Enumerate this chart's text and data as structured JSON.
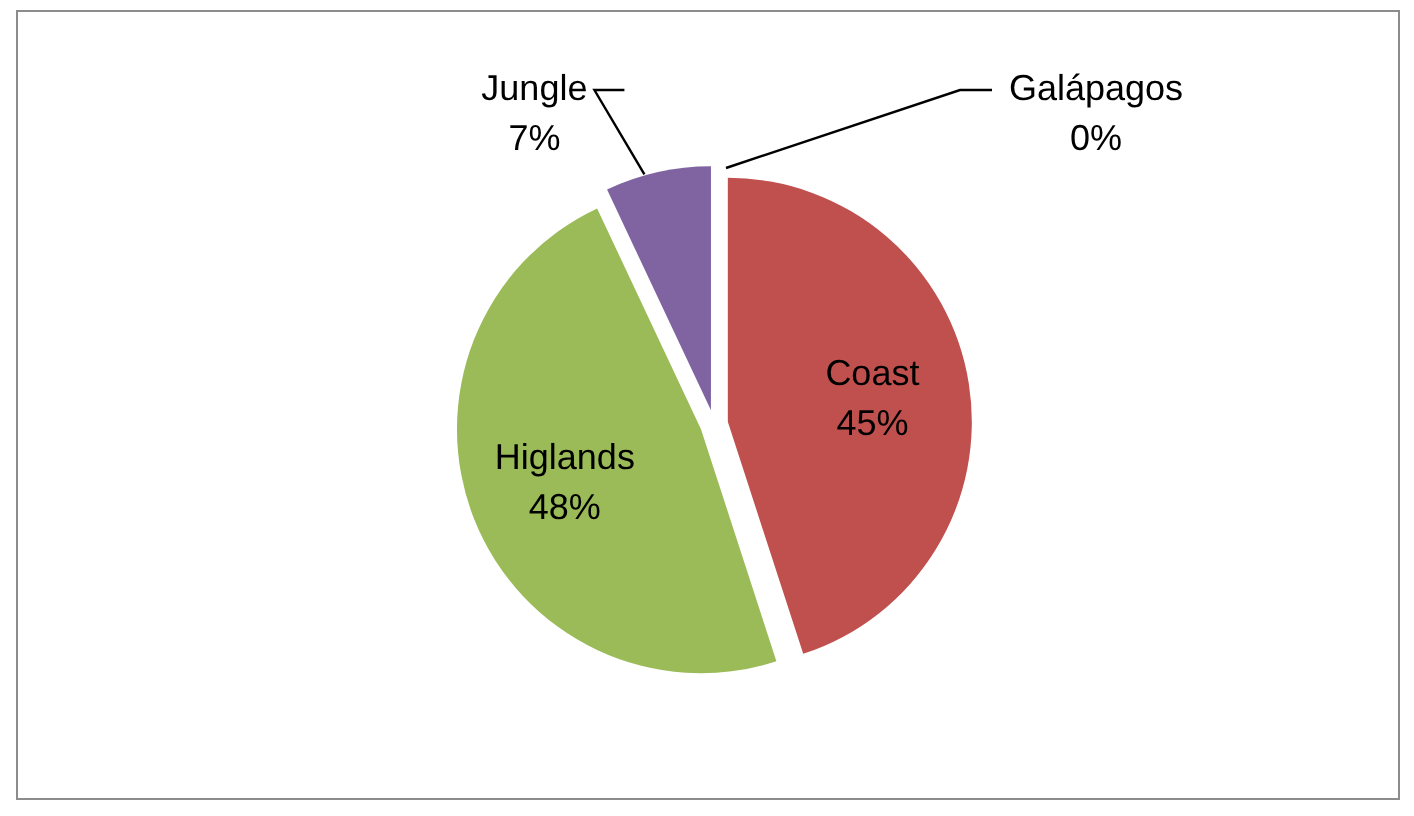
{
  "chart_data": {
    "type": "pie",
    "categories": [
      "Coast",
      "Higlands",
      "Jungle",
      "Galápagos"
    ],
    "values": [
      45,
      48,
      7,
      0
    ],
    "colors": [
      "#c0504d",
      "#9bbb59",
      "#8064a2",
      null
    ],
    "value_labels": [
      "45%",
      "48%",
      "7%",
      "0%"
    ]
  }
}
